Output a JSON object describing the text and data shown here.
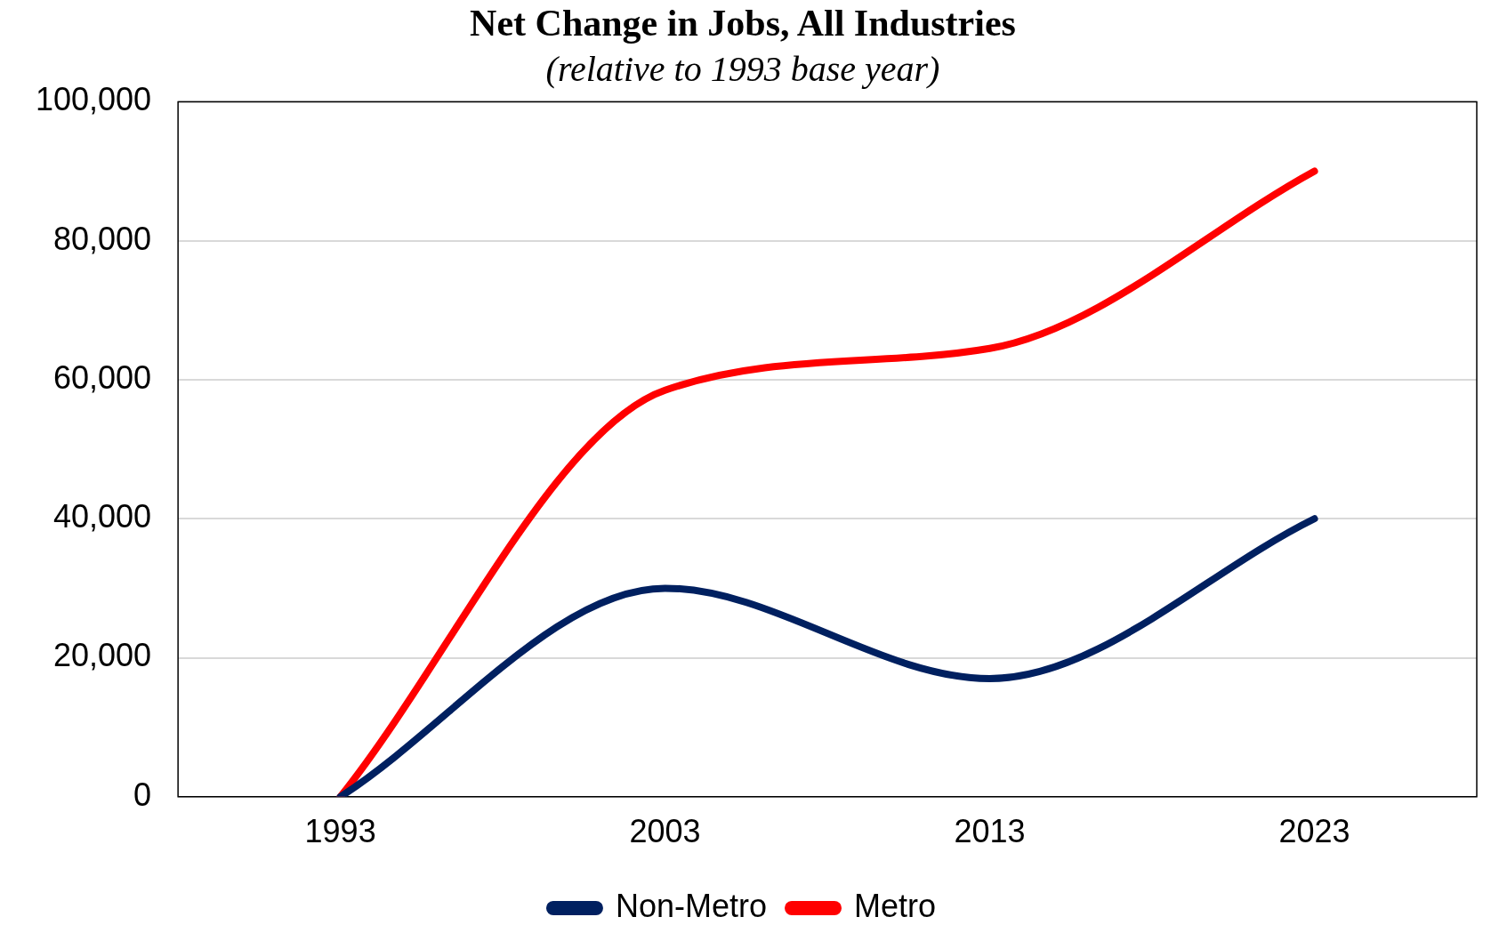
{
  "chart_data": {
    "type": "line",
    "title": "Net Change in Jobs, All Industries",
    "subtitle": "(relative to 1993 base year)",
    "categories": [
      "1993",
      "2003",
      "2013",
      "2023"
    ],
    "series": [
      {
        "name": "Non-Metro",
        "color": "#002060",
        "values": [
          0,
          30000,
          17000,
          40000
        ]
      },
      {
        "name": "Metro",
        "color": "#ff0000",
        "values": [
          0,
          58500,
          64500,
          90000
        ]
      }
    ],
    "ylim": [
      0,
      100000
    ],
    "yticks": [
      0,
      {
        "value": 20000,
        "label": "20,000"
      },
      {
        "value": 40000,
        "label": "40,000"
      },
      {
        "value": 60000,
        "label": "60,000"
      },
      {
        "value": 80000,
        "label": "80,000"
      },
      {
        "value": 100000,
        "label": "100,000"
      }
    ],
    "grid": "y",
    "legend": "bottom",
    "marker": "none",
    "line_style": "solid"
  }
}
